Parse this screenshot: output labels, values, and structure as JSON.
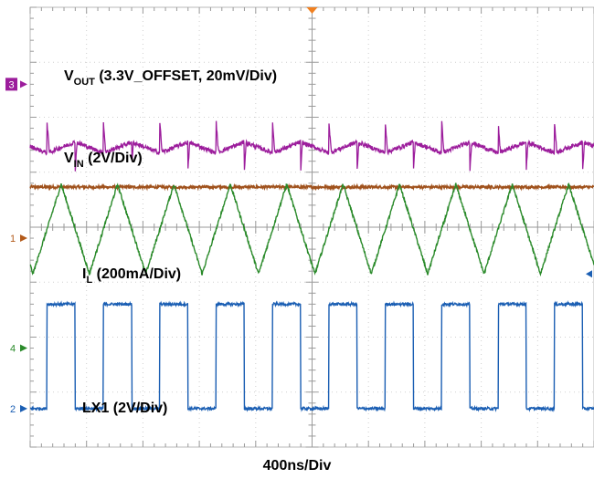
{
  "chart_data": {
    "type": "line",
    "x_label": "400ns/Div",
    "grid": true,
    "channel_markers": [
      {
        "name": "3",
        "level_div": 6.6,
        "color": "#9c1d9c",
        "boxed": true
      },
      {
        "name": "1",
        "level_div": 3.8,
        "color": "#b35a1a",
        "boxed": false
      },
      {
        "name": "4",
        "level_div": 1.8,
        "color": "#2a8a2a",
        "boxed": false
      },
      {
        "name": "2",
        "level_div": 0.7,
        "color": "#1a5eb3",
        "boxed": false
      }
    ],
    "series": [
      {
        "name": "VOUT",
        "label_main": "V",
        "label_sub": "OUT",
        "label_rest": " (3.3V_OFFSET, 20mV/Div)",
        "color": "#9c1d9c",
        "baseline_div": 5.45,
        "ripple_div": 0.25,
        "spike_div": 0.55,
        "period_div": 1.0
      },
      {
        "name": "VIN",
        "label_main": "V",
        "label_sub": "IN",
        "label_rest": " (2V/Div)",
        "color": "#a0521d",
        "level_div": 4.73
      },
      {
        "name": "IL",
        "label_main": "I",
        "label_sub": "L",
        "label_rest": " (200mA/Div)",
        "color": "#2a8a2a",
        "high_div": 4.78,
        "low_div": 3.15,
        "period_div": 1.0,
        "first_peak_div": 0.55
      },
      {
        "name": "LX1",
        "label_main": "LX1 (2V/Div)",
        "label_sub": "",
        "label_rest": "",
        "color": "#1a5eb3",
        "high_div": 2.6,
        "low_div": 0.7,
        "period_div": 1.0,
        "rise_div": 0.3,
        "fall_div": 1.0
      }
    ]
  }
}
